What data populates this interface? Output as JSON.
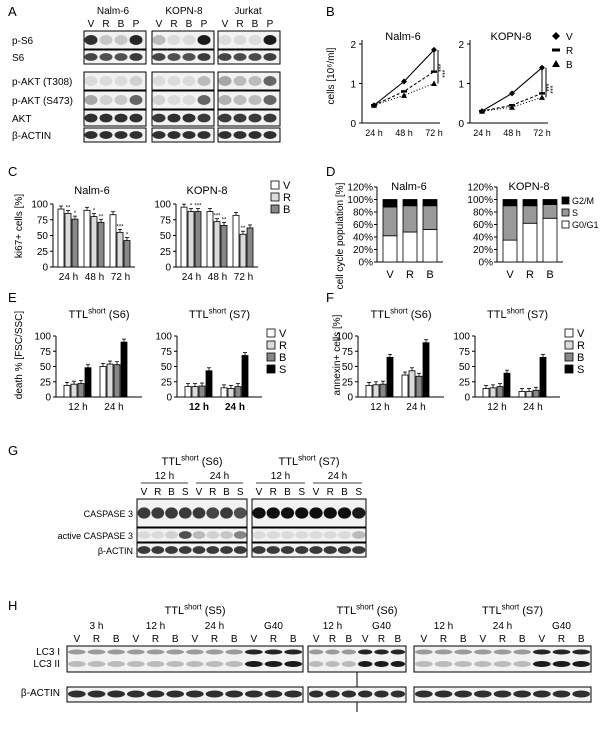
{
  "panelA": {
    "letter": "A",
    "groups": [
      "Nalm-6",
      "KOPN-8",
      "Jurkat"
    ],
    "lanes": [
      "V",
      "R",
      "B",
      "P"
    ],
    "blots": [
      "p-S6",
      "S6",
      "p-AKT (T308)",
      "p-AKT (S473)",
      "AKT",
      "β-ACTIN"
    ]
  },
  "panelB": {
    "letter": "B",
    "ylabel": "cells [10⁶/ml]",
    "legend": [
      {
        "label": "V",
        "marker": "diamond"
      },
      {
        "label": "R",
        "marker": "dash"
      },
      {
        "label": "B",
        "marker": "triangle"
      }
    ],
    "charts": [
      {
        "title": "Nalm-6",
        "x": [
          "24 h",
          "48 h",
          "72 h"
        ],
        "ylim": [
          0,
          2
        ],
        "yticks": [
          "0",
          "1",
          "2"
        ],
        "sig": [
          "***",
          "***"
        ],
        "series": [
          {
            "name": "V",
            "values": [
              0.45,
              1.05,
              1.85
            ]
          },
          {
            "name": "R",
            "values": [
              0.45,
              0.8,
              1.3
            ]
          },
          {
            "name": "B",
            "values": [
              0.45,
              0.7,
              1.0
            ]
          }
        ]
      },
      {
        "title": "KOPN-8",
        "x": [
          "24 h",
          "48 h",
          "72 h"
        ],
        "ylim": [
          0,
          2
        ],
        "yticks": [
          "0",
          "1",
          "2"
        ],
        "sig": [
          "***",
          "***"
        ],
        "series": [
          {
            "name": "V",
            "values": [
              0.3,
              0.75,
              1.4
            ]
          },
          {
            "name": "R",
            "values": [
              0.3,
              0.45,
              0.75
            ]
          },
          {
            "name": "B",
            "values": [
              0.3,
              0.4,
              0.65
            ]
          }
        ]
      }
    ]
  },
  "panelC": {
    "letter": "C",
    "ylabel": "ki67+ cells [%]",
    "legend": [
      "V",
      "R",
      "B"
    ],
    "charts": [
      {
        "title": "Nalm-6",
        "categories": [
          "24 h",
          "48 h",
          "72 h"
        ],
        "ylim": [
          0,
          100
        ],
        "yticks": [
          "0",
          "25",
          "50",
          "75",
          "100"
        ],
        "series": [
          {
            "name": "V",
            "values": [
              92,
              90,
              83
            ]
          },
          {
            "name": "R",
            "values": [
              85,
              80,
              55
            ]
          },
          {
            "name": "B",
            "values": [
              76,
              71,
              42
            ]
          }
        ],
        "sig": [
          "**",
          "*",
          "*",
          "**",
          "***",
          "*"
        ]
      },
      {
        "title": "KOPN-8",
        "categories": [
          "24 h",
          "48 h",
          "72 h"
        ],
        "ylim": [
          0,
          100
        ],
        "yticks": [
          "0",
          "25",
          "50",
          "75",
          "100"
        ],
        "series": [
          {
            "name": "V",
            "values": [
              95,
              88,
              82
            ]
          },
          {
            "name": "R",
            "values": [
              88,
              72,
              52
            ]
          },
          {
            "name": "B",
            "values": [
              88,
              66,
              62
            ]
          }
        ],
        "sig": [
          "*",
          "***",
          "***",
          "**",
          "**"
        ]
      }
    ]
  },
  "panelD": {
    "letter": "D",
    "ylabel": "cell cycle population [%]",
    "legend": [
      "G2/M",
      "S",
      "G0/G1"
    ],
    "yticks": [
      "0%",
      "20%",
      "40%",
      "60%",
      "80%",
      "100%",
      "120%"
    ],
    "charts": [
      {
        "title": "Nalm-6",
        "categories": [
          "V",
          "R",
          "B"
        ],
        "stacks": [
          {
            "name": "G0/G1",
            "values": [
              42,
              48,
              52
            ]
          },
          {
            "name": "S",
            "values": [
              46,
              42,
              38
            ]
          },
          {
            "name": "G2/M",
            "values": [
              12,
              10,
              10
            ]
          }
        ]
      },
      {
        "title": "KOPN-8",
        "categories": [
          "V",
          "R",
          "B"
        ],
        "stacks": [
          {
            "name": "G0/G1",
            "values": [
              35,
              62,
              70
            ]
          },
          {
            "name": "S",
            "values": [
              55,
              28,
              22
            ]
          },
          {
            "name": "G2/M",
            "values": [
              10,
              10,
              8
            ]
          }
        ]
      }
    ]
  },
  "panelE": {
    "letter": "E",
    "ylabel": "death % [FSC/SSC]",
    "legend": [
      "V",
      "R",
      "B",
      "S"
    ],
    "charts": [
      {
        "title_main": "TTL",
        "title_sup": "short",
        "title_tail": " (S6)",
        "categories": [
          "12 h",
          "24 h"
        ],
        "bold_ticks": false,
        "ylim": [
          0,
          100
        ],
        "yticks": [
          "0",
          "25",
          "50",
          "75",
          "100"
        ],
        "series": [
          {
            "name": "V",
            "values": [
              19,
              50
            ]
          },
          {
            "name": "R",
            "values": [
              21,
              54
            ]
          },
          {
            "name": "B",
            "values": [
              22,
              53
            ]
          },
          {
            "name": "S",
            "values": [
              48,
              90
            ]
          }
        ]
      },
      {
        "title_main": "TTL",
        "title_sup": "short",
        "title_tail": " (S7)",
        "categories": [
          "12 h",
          "24 h"
        ],
        "bold_ticks": true,
        "ylim": [
          0,
          100
        ],
        "yticks": [
          "0",
          "25",
          "50",
          "75",
          "100"
        ],
        "series": [
          {
            "name": "V",
            "values": [
              17,
              15
            ]
          },
          {
            "name": "R",
            "values": [
              17,
              14
            ]
          },
          {
            "name": "B",
            "values": [
              18,
              17
            ]
          },
          {
            "name": "S",
            "values": [
              43,
              68
            ]
          }
        ]
      }
    ]
  },
  "panelF": {
    "letter": "F",
    "ylabel": "annexin+ cells [%]",
    "legend": [
      "V",
      "R",
      "B",
      "S"
    ],
    "charts": [
      {
        "title_main": "TTL",
        "title_sup": "short",
        "title_tail": " (S6)",
        "categories": [
          "12 h",
          "24 h"
        ],
        "ylim": [
          0,
          100
        ],
        "yticks": [
          "0",
          "25",
          "50",
          "75",
          "100"
        ],
        "series": [
          {
            "name": "V",
            "values": [
              19,
              36
            ]
          },
          {
            "name": "R",
            "values": [
              20,
              43
            ]
          },
          {
            "name": "B",
            "values": [
              21,
              34
            ]
          },
          {
            "name": "S",
            "values": [
              65,
              89
            ]
          }
        ]
      },
      {
        "title_main": "TTL",
        "title_sup": "short",
        "title_tail": " (S7)",
        "categories": [
          "12 h",
          "24 h"
        ],
        "ylim": [
          0,
          100
        ],
        "yticks": [
          "0",
          "25",
          "50",
          "75",
          "100"
        ],
        "series": [
          {
            "name": "V",
            "values": [
              14,
              9
            ]
          },
          {
            "name": "R",
            "values": [
              15,
              9
            ]
          },
          {
            "name": "B",
            "values": [
              17,
              11
            ]
          },
          {
            "name": "S",
            "values": [
              39,
              65
            ]
          }
        ]
      }
    ]
  },
  "panelG": {
    "letter": "G",
    "blocks": [
      {
        "title_main": "TTL",
        "title_sup": "short",
        "title_tail": " (S6)",
        "times": [
          "12 h",
          "24 h"
        ],
        "lanes": [
          "V",
          "R",
          "B",
          "S",
          "V",
          "R",
          "B",
          "S"
        ]
      },
      {
        "title_main": "TTL",
        "title_sup": "short",
        "title_tail": " (S7)",
        "times": [
          "12 h",
          "24 h"
        ],
        "lanes": [
          "V",
          "R",
          "B",
          "S",
          "V",
          "R",
          "B",
          "S"
        ]
      }
    ],
    "blots": [
      "CASPASE 3",
      "active CASPASE 3",
      "β-ACTIN"
    ]
  },
  "panelH": {
    "letter": "H",
    "blocks": [
      {
        "title_main": "TTL",
        "title_sup": "short",
        "title_tail": " (S5)",
        "times": [
          "3 h",
          "12 h",
          "24 h",
          "G40"
        ]
      },
      {
        "title_main": "TTL",
        "title_sup": "short",
        "title_tail": " (S6)",
        "times": [
          "12 h",
          "G40"
        ]
      },
      {
        "title_main": "TTL",
        "title_sup": "short",
        "title_tail": " (S7)",
        "times": [
          "12 h",
          "24 h",
          "G40"
        ]
      }
    ],
    "lanes": [
      "V",
      "R",
      "B"
    ],
    "blots": [
      "LC3 I",
      "LC3 II",
      "β-ACTIN"
    ]
  }
}
